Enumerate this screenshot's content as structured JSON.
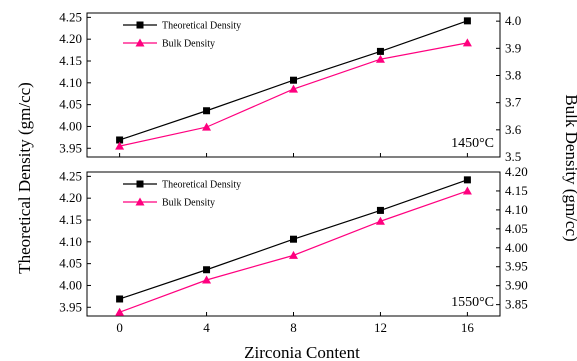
{
  "figure": {
    "ylabel_left": "Theoretical Density (gm/cc)",
    "ylabel_right": "Bulk Density (gm/cc)",
    "xlabel": "Zirconia Content",
    "colors": {
      "theoretical": "#000000",
      "bulk": "#ff007f"
    }
  },
  "chart_data": [
    {
      "type": "line",
      "annotation": "1450°C",
      "x": [
        0,
        4,
        8,
        12,
        16
      ],
      "xticks": [
        "0",
        "4",
        "8",
        "12",
        "16"
      ],
      "legend": [
        "Theoretical Density",
        "Bulk Density"
      ],
      "series": [
        {
          "name": "Theoretical Density",
          "axis": "left",
          "marker": "square",
          "color": "#000000",
          "values": [
            3.969,
            4.036,
            4.106,
            4.172,
            4.242
          ]
        },
        {
          "name": "Bulk Density",
          "axis": "right",
          "marker": "triangle",
          "color": "#ff007f",
          "values": [
            3.54,
            3.61,
            3.75,
            3.86,
            3.92
          ]
        }
      ],
      "ylim_left": [
        3.93,
        4.26
      ],
      "yticks_left": [
        "3.95",
        "4.00",
        "4.05",
        "4.10",
        "4.15",
        "4.20",
        "4.25"
      ],
      "ylim_right": [
        3.5,
        4.03
      ],
      "yticks_right": [
        "3.5",
        "3.6",
        "3.7",
        "3.8",
        "3.9",
        "4.0"
      ]
    },
    {
      "type": "line",
      "annotation": "1550°C",
      "x": [
        0,
        4,
        8,
        12,
        16
      ],
      "xticks": [
        "0",
        "4",
        "8",
        "12",
        "16"
      ],
      "legend": [
        "Theoretical Density",
        "Bulk Density"
      ],
      "series": [
        {
          "name": "Theoretical Density",
          "axis": "left",
          "marker": "square",
          "color": "#000000",
          "values": [
            3.969,
            4.036,
            4.106,
            4.172,
            4.242
          ]
        },
        {
          "name": "Bulk Density",
          "axis": "right",
          "marker": "triangle",
          "color": "#ff007f",
          "values": [
            3.83,
            3.915,
            3.98,
            4.07,
            4.15
          ]
        }
      ],
      "ylim_left": [
        3.93,
        4.26
      ],
      "yticks_left": [
        "3.95",
        "4.00",
        "4.05",
        "4.10",
        "4.15",
        "4.20",
        "4.25"
      ],
      "ylim_right": [
        3.82,
        4.2
      ],
      "yticks_right": [
        "3.85",
        "3.90",
        "3.95",
        "4.00",
        "4.05",
        "4.10",
        "4.15",
        "4.20"
      ]
    }
  ]
}
